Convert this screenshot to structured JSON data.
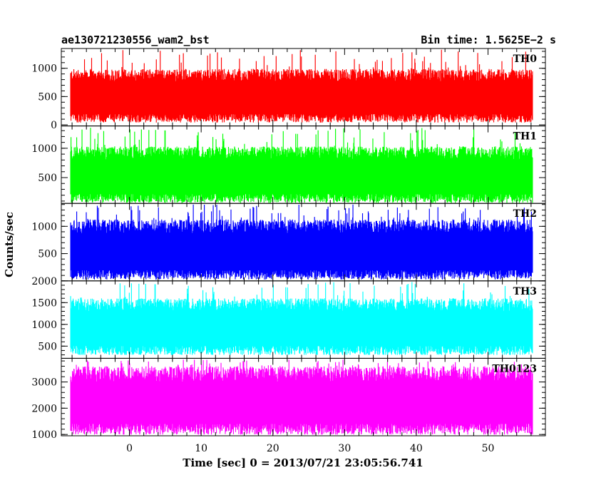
{
  "header": {
    "left_title": "ae130721230556_wam2_bst",
    "right_title": "Bin time: 1.5625E−2 s"
  },
  "chart_data": {
    "type": "line",
    "xlabel": "Time [sec] 0 = 2013/07/21 23:05:56.741",
    "ylabel": "Counts/sec",
    "xlim": [
      -9.5,
      58
    ],
    "xdata_range": [
      -8.2,
      56.2
    ],
    "xticks": [
      0,
      10,
      20,
      30,
      40,
      50
    ],
    "bin_time_s": 0.015625,
    "grid": false,
    "panels": [
      {
        "name": "TH0",
        "color": "#ff0000",
        "ylim": [
          -20,
          1350
        ],
        "yticks": [
          0,
          500,
          1000
        ],
        "baseline": 80,
        "typical_low": 150,
        "typical_high": 880,
        "peak_max": 1340
      },
      {
        "name": "TH1",
        "color": "#00ff00",
        "ylim": [
          60,
          1380
        ],
        "yticks": [
          500,
          1000
        ],
        "baseline": 100,
        "typical_low": 180,
        "typical_high": 920,
        "peak_max": 1350
      },
      {
        "name": "TH2",
        "color": "#0000ff",
        "ylim": [
          0,
          1420
        ],
        "yticks": [
          500,
          1000
        ],
        "baseline": 70,
        "typical_low": 150,
        "typical_high": 1000,
        "peak_max": 1400
      },
      {
        "name": "TH3",
        "color": "#00ffff",
        "ylim": [
          220,
          2000
        ],
        "yticks": [
          500,
          1000,
          1500,
          2000
        ],
        "baseline": 300,
        "typical_low": 450,
        "typical_high": 1450,
        "peak_max": 1980
      },
      {
        "name": "TH0123",
        "color": "#ff00ff",
        "ylim": [
          950,
          3900
        ],
        "yticks": [
          1000,
          2000,
          3000
        ],
        "baseline": 1000,
        "typical_low": 1300,
        "typical_high": 3300,
        "peak_max": 3850
      }
    ]
  }
}
